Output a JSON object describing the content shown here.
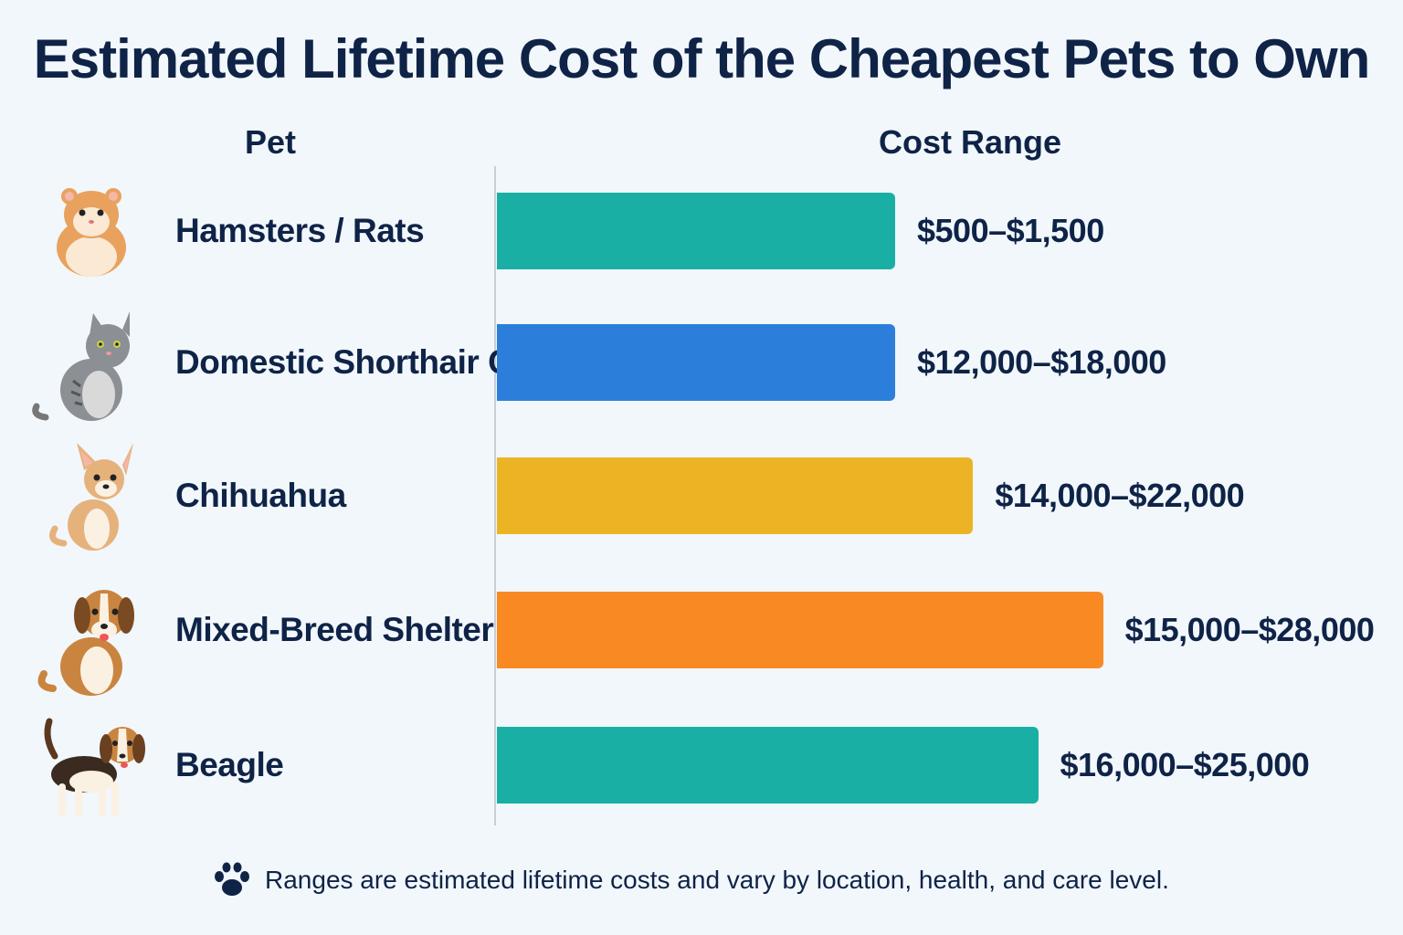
{
  "title": "Estimated Lifetime Cost of the Cheapest Pets to Own",
  "headers": {
    "pet": "Pet",
    "cost": "Cost Range"
  },
  "footer": {
    "icon": "paw-icon",
    "note": "Ranges are estimated lifetime costs and vary by location, health, and care level."
  },
  "colors": {
    "teal": "#1aafa5",
    "blue": "#2b7fdb",
    "yellow": "#ecb424",
    "orange": "#f98a23",
    "text": "#0f2347"
  },
  "chart_data": {
    "type": "bar",
    "orientation": "horizontal",
    "categories": [
      "Hamsters / Rats",
      "Domestic Shorthair Cat",
      "Chihuahua",
      "Mixed-Breed Shelter Dog",
      "Beagle"
    ],
    "ranges": [
      [
        500,
        1500
      ],
      [
        12000,
        18000
      ],
      [
        14000,
        22000
      ],
      [
        15000,
        28000
      ],
      [
        16000,
        25000
      ]
    ],
    "range_labels": [
      "$500–$1,500",
      "$12,000–$18,000",
      "$14,000–$22,000",
      "$15,000–$28,000",
      "$16,000–$25,000"
    ],
    "bar_colors": [
      "#1aafa5",
      "#2b7fdb",
      "#ecb424",
      "#f98a23",
      "#1aafa5"
    ],
    "icons": [
      "hamster-icon",
      "cat-icon",
      "chihuahua-icon",
      "shelter-dog-icon",
      "beagle-icon"
    ],
    "grid": false
  }
}
